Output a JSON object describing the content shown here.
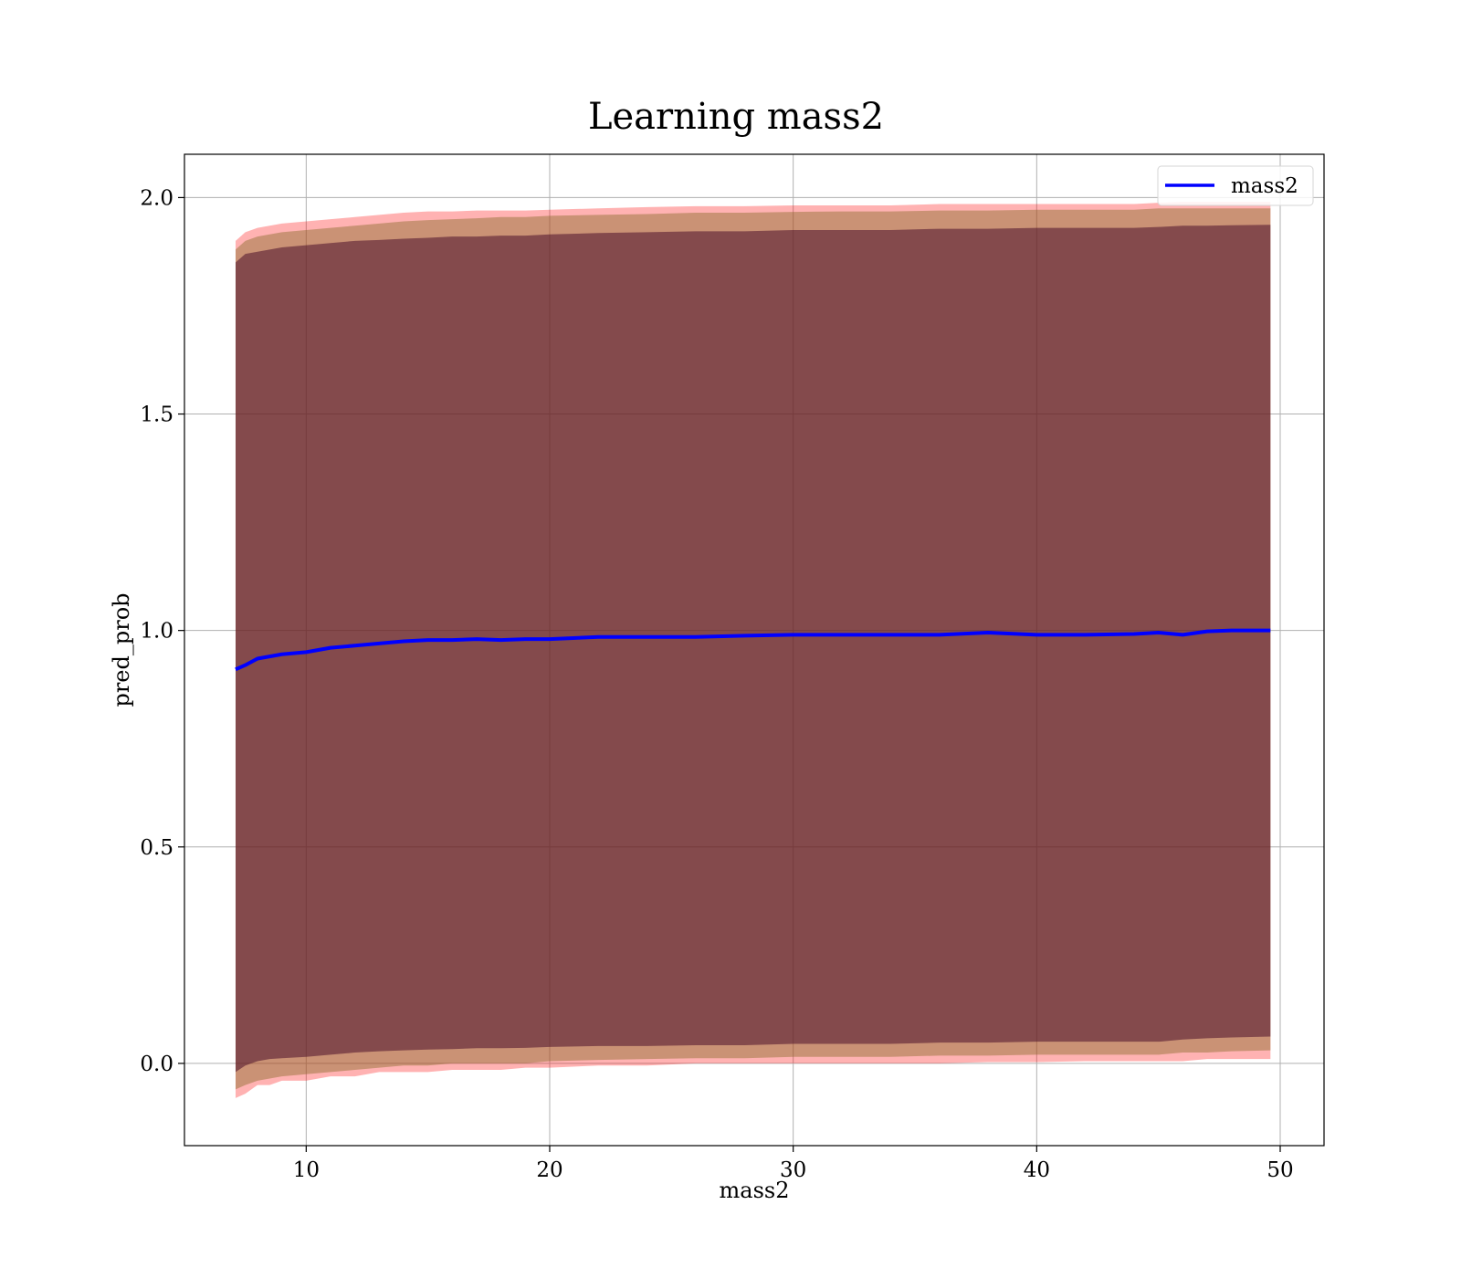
{
  "chart_data": {
    "type": "line",
    "title": "Learning mass2",
    "xlabel": "mass2",
    "ylabel": "pred_prob",
    "xlim": [
      5,
      51.8
    ],
    "ylim": [
      -0.19,
      2.1
    ],
    "grid": true,
    "legend_position": "top-right",
    "xticks": [
      10,
      20,
      30,
      40,
      50
    ],
    "xtick_labels": [
      "10",
      "20",
      "30",
      "40",
      "50"
    ],
    "yticks": [
      0.0,
      0.5,
      1.0,
      1.5,
      2.0
    ],
    "ytick_labels": [
      "0.0",
      "0.5",
      "1.0",
      "1.5",
      "2.0"
    ],
    "colors": {
      "line": "#0000ff",
      "outer_band": "#ff0000",
      "inner_band": "#4b0f2a",
      "middle_band": "#8a6a2a"
    },
    "series": [
      {
        "name": "mass2",
        "x": [
          7.1,
          7.5,
          8.0,
          8.5,
          9.0,
          10.0,
          11.0,
          12.0,
          13.0,
          14.0,
          15.0,
          16.0,
          17.0,
          18.0,
          19.0,
          20.0,
          22.0,
          24.0,
          26.0,
          28.0,
          30.0,
          32.0,
          34.0,
          36.0,
          38.0,
          40.0,
          42.0,
          44.0,
          45.0,
          46.0,
          47.0,
          48.0,
          49.6
        ],
        "y": [
          0.91,
          0.92,
          0.935,
          0.94,
          0.945,
          0.95,
          0.96,
          0.965,
          0.97,
          0.975,
          0.978,
          0.978,
          0.98,
          0.978,
          0.98,
          0.98,
          0.985,
          0.985,
          0.985,
          0.988,
          0.99,
          0.99,
          0.99,
          0.99,
          0.995,
          0.99,
          0.99,
          0.992,
          0.995,
          0.99,
          0.998,
          1.0,
          1.0
        ]
      }
    ],
    "bands": [
      {
        "x": [
          7.1,
          7.5,
          8.0,
          8.5,
          9.0,
          10.0,
          11.0,
          12.0,
          13.0,
          14.0,
          15.0,
          16.0,
          17.0,
          18.0,
          19.0,
          20.0,
          22.0,
          24.0,
          26.0,
          28.0,
          30.0,
          32.0,
          34.0,
          36.0,
          38.0,
          40.0,
          42.0,
          44.0,
          45.0,
          46.0,
          47.0,
          48.0,
          49.6
        ],
        "lower": [
          -0.08,
          -0.07,
          -0.05,
          -0.05,
          -0.04,
          -0.04,
          -0.03,
          -0.03,
          -0.02,
          -0.02,
          -0.02,
          -0.015,
          -0.015,
          -0.015,
          -0.01,
          -0.01,
          -0.005,
          -0.005,
          0.0,
          0.0,
          0.0,
          0.0,
          0.0,
          0.0,
          0.003,
          0.003,
          0.005,
          0.005,
          0.005,
          0.005,
          0.01,
          0.01,
          0.01
        ],
        "upper": [
          1.9,
          1.92,
          1.93,
          1.935,
          1.94,
          1.945,
          1.95,
          1.955,
          1.96,
          1.965,
          1.968,
          1.968,
          1.97,
          1.97,
          1.97,
          1.972,
          1.975,
          1.978,
          1.98,
          1.98,
          1.982,
          1.982,
          1.982,
          1.985,
          1.985,
          1.985,
          1.985,
          1.985,
          1.988,
          1.99,
          1.99,
          1.99,
          1.99
        ]
      },
      {
        "x": [
          7.1,
          7.5,
          8.0,
          8.5,
          9.0,
          10.0,
          11.0,
          12.0,
          13.0,
          14.0,
          15.0,
          16.0,
          17.0,
          18.0,
          19.0,
          20.0,
          22.0,
          24.0,
          26.0,
          28.0,
          30.0,
          32.0,
          34.0,
          36.0,
          38.0,
          40.0,
          42.0,
          44.0,
          45.0,
          46.0,
          47.0,
          48.0,
          49.6
        ],
        "lower": [
          -0.06,
          -0.05,
          -0.04,
          -0.035,
          -0.03,
          -0.025,
          -0.02,
          -0.015,
          -0.01,
          -0.005,
          -0.005,
          0.0,
          0.0,
          0.0,
          0.0,
          0.005,
          0.008,
          0.01,
          0.012,
          0.012,
          0.015,
          0.015,
          0.015,
          0.018,
          0.018,
          0.02,
          0.02,
          0.02,
          0.02,
          0.025,
          0.025,
          0.028,
          0.03
        ],
        "upper": [
          1.88,
          1.9,
          1.91,
          1.915,
          1.92,
          1.925,
          1.93,
          1.935,
          1.94,
          1.945,
          1.948,
          1.95,
          1.952,
          1.955,
          1.955,
          1.958,
          1.96,
          1.962,
          1.965,
          1.965,
          1.967,
          1.968,
          1.968,
          1.97,
          1.97,
          1.972,
          1.972,
          1.972,
          1.975,
          1.975,
          1.975,
          1.975,
          1.975
        ]
      },
      {
        "x": [
          7.1,
          7.5,
          8.0,
          8.5,
          9.0,
          10.0,
          11.0,
          12.0,
          13.0,
          14.0,
          15.0,
          16.0,
          17.0,
          18.0,
          19.0,
          20.0,
          22.0,
          24.0,
          26.0,
          28.0,
          30.0,
          32.0,
          34.0,
          36.0,
          38.0,
          40.0,
          42.0,
          44.0,
          45.0,
          46.0,
          47.0,
          48.0,
          49.6
        ],
        "lower": [
          -0.02,
          -0.005,
          0.005,
          0.01,
          0.012,
          0.015,
          0.02,
          0.025,
          0.028,
          0.03,
          0.032,
          0.033,
          0.035,
          0.035,
          0.036,
          0.038,
          0.04,
          0.04,
          0.042,
          0.042,
          0.045,
          0.045,
          0.045,
          0.048,
          0.048,
          0.05,
          0.05,
          0.05,
          0.05,
          0.055,
          0.058,
          0.06,
          0.062
        ],
        "upper": [
          1.85,
          1.87,
          1.875,
          1.88,
          1.885,
          1.89,
          1.895,
          1.9,
          1.902,
          1.905,
          1.907,
          1.91,
          1.91,
          1.912,
          1.912,
          1.915,
          1.918,
          1.92,
          1.922,
          1.922,
          1.925,
          1.925,
          1.925,
          1.928,
          1.928,
          1.93,
          1.93,
          1.93,
          1.932,
          1.935,
          1.935,
          1.936,
          1.937
        ]
      }
    ]
  }
}
